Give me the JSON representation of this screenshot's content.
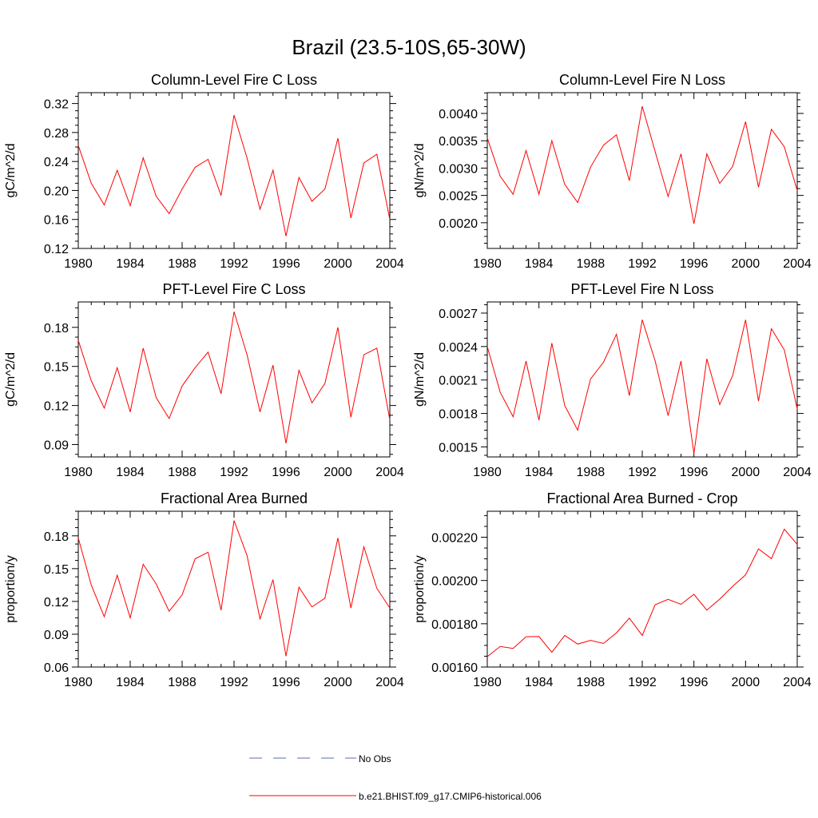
{
  "figure": {
    "title": "Brazil (23.5-10S,65-30W)",
    "colors": {
      "model_line": "#ff0000",
      "obs_line": "#5a6fb0",
      "axis": "#000000"
    }
  },
  "chart_data": [
    {
      "type": "line",
      "title": "Column-Level Fire C Loss",
      "ylabel": "gC/m^2/d",
      "x": [
        1980,
        1981,
        1982,
        1983,
        1984,
        1985,
        1986,
        1987,
        1988,
        1989,
        1990,
        1991,
        1992,
        1993,
        1994,
        1995,
        1996,
        1997,
        1998,
        1999,
        2000,
        2001,
        2002,
        2003,
        2004
      ],
      "xlim": [
        1980,
        2004
      ],
      "xticks": [
        1980,
        1984,
        1988,
        1992,
        1996,
        2000,
        2004
      ],
      "ylim": [
        0.12,
        0.335
      ],
      "yticks": [
        0.12,
        0.16,
        0.2,
        0.24,
        0.28,
        0.32
      ],
      "ytick_labels": [
        "0.12",
        "0.16",
        "0.20",
        "0.24",
        "0.28",
        "0.32"
      ],
      "series": [
        {
          "name": "b.e21.BHIST.f09_g17.CMIP6-historical.006",
          "values": [
            0.262,
            0.21,
            0.18,
            0.228,
            0.179,
            0.245,
            0.192,
            0.168,
            0.202,
            0.232,
            0.243,
            0.193,
            0.304,
            0.245,
            0.174,
            0.228,
            0.137,
            0.218,
            0.185,
            0.202,
            0.272,
            0.162,
            0.238,
            0.25,
            0.16
          ]
        }
      ]
    },
    {
      "type": "line",
      "title": "Column-Level Fire N Loss",
      "ylabel": "gN/m^2/d",
      "x": [
        1980,
        1981,
        1982,
        1983,
        1984,
        1985,
        1986,
        1987,
        1988,
        1989,
        1990,
        1991,
        1992,
        1993,
        1994,
        1995,
        1996,
        1997,
        1998,
        1999,
        2000,
        2001,
        2002,
        2003,
        2004
      ],
      "xlim": [
        1980,
        2004
      ],
      "xticks": [
        1980,
        1984,
        1988,
        1992,
        1996,
        2000,
        2004
      ],
      "ylim": [
        0.00153,
        0.00438
      ],
      "yticks": [
        0.002,
        0.0025,
        0.003,
        0.0035,
        0.004
      ],
      "ytick_labels": [
        "0.0020",
        "0.0025",
        "0.0030",
        "0.0035",
        "0.0040"
      ],
      "series": [
        {
          "name": "b.e21.BHIST.f09_g17.CMIP6-historical.006",
          "values": [
            0.00355,
            0.00285,
            0.00252,
            0.00332,
            0.00252,
            0.0035,
            0.0027,
            0.00237,
            0.00302,
            0.00342,
            0.00361,
            0.00277,
            0.00413,
            0.0033,
            0.00248,
            0.00326,
            0.00198,
            0.00326,
            0.00272,
            0.00303,
            0.00385,
            0.00265,
            0.00371,
            0.00339,
            0.00259
          ]
        }
      ]
    },
    {
      "type": "line",
      "title": "PFT-Level Fire C Loss",
      "ylabel": "gC/m^2/d",
      "x": [
        1980,
        1981,
        1982,
        1983,
        1984,
        1985,
        1986,
        1987,
        1988,
        1989,
        1990,
        1991,
        1992,
        1993,
        1994,
        1995,
        1996,
        1997,
        1998,
        1999,
        2000,
        2001,
        2002,
        2003,
        2004
      ],
      "xlim": [
        1980,
        2004
      ],
      "xticks": [
        1980,
        1984,
        1988,
        1992,
        1996,
        2000,
        2004
      ],
      "ylim": [
        0.0805,
        0.1995
      ],
      "yticks": [
        0.09,
        0.12,
        0.15,
        0.18
      ],
      "ytick_labels": [
        "0.09",
        "0.12",
        "0.15",
        "0.18"
      ],
      "series": [
        {
          "name": "b.e21.BHIST.f09_g17.CMIP6-historical.006",
          "values": [
            0.17,
            0.139,
            0.118,
            0.149,
            0.115,
            0.164,
            0.126,
            0.11,
            0.135,
            0.149,
            0.161,
            0.129,
            0.192,
            0.159,
            0.115,
            0.151,
            0.091,
            0.147,
            0.122,
            0.137,
            0.18,
            0.111,
            0.159,
            0.164,
            0.109
          ]
        }
      ]
    },
    {
      "type": "line",
      "title": "PFT-Level Fire N Loss",
      "ylabel": "gN/m^2/d",
      "x": [
        1980,
        1981,
        1982,
        1983,
        1984,
        1985,
        1986,
        1987,
        1988,
        1989,
        1990,
        1991,
        1992,
        1993,
        1994,
        1995,
        1996,
        1997,
        1998,
        1999,
        2000,
        2001,
        2002,
        2003,
        2004
      ],
      "xlim": [
        1980,
        2004
      ],
      "xticks": [
        1980,
        1984,
        1988,
        1992,
        1996,
        2000,
        2004
      ],
      "ylim": [
        0.00141,
        0.0028
      ],
      "yticks": [
        0.0015,
        0.0018,
        0.0021,
        0.0024,
        0.0027
      ],
      "ytick_labels": [
        "0.0015",
        "0.0018",
        "0.0021",
        "0.0024",
        "0.0027"
      ],
      "series": [
        {
          "name": "b.e21.BHIST.f09_g17.CMIP6-historical.006",
          "values": [
            0.0024,
            0.00199,
            0.00177,
            0.00227,
            0.00174,
            0.00243,
            0.00187,
            0.00165,
            0.00211,
            0.00226,
            0.00251,
            0.00196,
            0.00264,
            0.00227,
            0.00178,
            0.00227,
            0.00144,
            0.00229,
            0.00188,
            0.00214,
            0.00264,
            0.00191,
            0.00256,
            0.00237,
            0.00184
          ]
        }
      ]
    },
    {
      "type": "line",
      "title": "Fractional Area Burned",
      "ylabel": "proportion/y",
      "x": [
        1980,
        1981,
        1982,
        1983,
        1984,
        1985,
        1986,
        1987,
        1988,
        1989,
        1990,
        1991,
        1992,
        1993,
        1994,
        1995,
        1996,
        1997,
        1998,
        1999,
        2000,
        2001,
        2002,
        2003,
        2004
      ],
      "xlim": [
        1980,
        2004
      ],
      "xticks": [
        1980,
        1984,
        1988,
        1992,
        1996,
        2000,
        2004
      ],
      "ylim": [
        0.06,
        0.2025
      ],
      "yticks": [
        0.06,
        0.09,
        0.12,
        0.15,
        0.18
      ],
      "ytick_labels": [
        "0.06",
        "0.09",
        "0.12",
        "0.15",
        "0.18"
      ],
      "series": [
        {
          "name": "b.e21.BHIST.f09_g17.CMIP6-historical.006",
          "values": [
            0.178,
            0.135,
            0.106,
            0.144,
            0.105,
            0.154,
            0.136,
            0.111,
            0.126,
            0.159,
            0.165,
            0.112,
            0.194,
            0.162,
            0.104,
            0.14,
            0.07,
            0.133,
            0.115,
            0.123,
            0.178,
            0.114,
            0.17,
            0.132,
            0.114
          ]
        }
      ]
    },
    {
      "type": "line",
      "title": "Fractional Area Burned - Crop",
      "ylabel": "proportion/y",
      "x": [
        1980,
        1981,
        1982,
        1983,
        1984,
        1985,
        1986,
        1987,
        1988,
        1989,
        1990,
        1991,
        1992,
        1993,
        1994,
        1995,
        1996,
        1997,
        1998,
        1999,
        2000,
        2001,
        2002,
        2003,
        2004
      ],
      "xlim": [
        1980,
        2004
      ],
      "xticks": [
        1980,
        1984,
        1988,
        1992,
        1996,
        2000,
        2004
      ],
      "ylim": [
        0.0016,
        0.00232
      ],
      "yticks": [
        0.0016,
        0.0018,
        0.002,
        0.0022
      ],
      "ytick_labels": [
        "0.00160",
        "0.00180",
        "0.00200",
        "0.00220"
      ],
      "series": [
        {
          "name": "b.e21.BHIST.f09_g17.CMIP6-historical.006",
          "values": [
            0.001648,
            0.001695,
            0.001686,
            0.00174,
            0.001741,
            0.001668,
            0.001746,
            0.001706,
            0.001723,
            0.001709,
            0.001758,
            0.001826,
            0.001746,
            0.001888,
            0.001913,
            0.00189,
            0.001936,
            0.001863,
            0.001914,
            0.001973,
            0.002026,
            0.002146,
            0.002101,
            0.002237,
            0.002167
          ]
        }
      ]
    }
  ],
  "legend": {
    "items": [
      {
        "label": "No Obs",
        "style": "dashed",
        "color": "#5a6fb0"
      },
      {
        "label": "b.e21.BHIST.f09_g17.CMIP6-historical.006",
        "style": "solid",
        "color": "#ff0000"
      }
    ]
  }
}
